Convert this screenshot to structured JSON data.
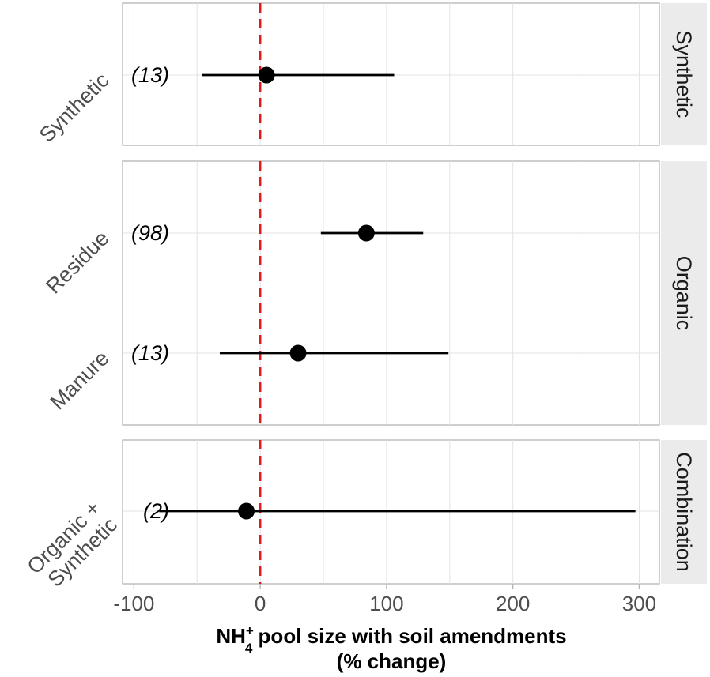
{
  "chart_data": {
    "type": "forest",
    "x_axis": {
      "title_line1_prefix": "NH",
      "title_line1_sub": "4",
      "title_line1_sup": "+",
      "title_line1_suffix": " pool size with soil amendments",
      "title_line2": "(% change)",
      "ticks": [
        -100,
        0,
        100,
        200,
        300
      ],
      "tick_labels": [
        "-100",
        "0",
        "100",
        "200",
        "300"
      ],
      "range": [
        -109,
        316
      ]
    },
    "reference_line": {
      "x": 0,
      "color": "#e31a1c",
      "style": "dashed"
    },
    "grid": true,
    "facets": [
      {
        "strip": "Synthetic",
        "rows": [
          {
            "label": "Synthetic",
            "n_label": "(13)",
            "estimate": 5,
            "lower": -46,
            "upper": 106
          }
        ]
      },
      {
        "strip": "Organic",
        "rows": [
          {
            "label": "Residue",
            "n_label": "(98)",
            "estimate": 84,
            "lower": 48,
            "upper": 129
          },
          {
            "label": "Manure",
            "n_label": "(13)",
            "estimate": 30,
            "lower": -32,
            "upper": 149
          }
        ]
      },
      {
        "strip": "Combination",
        "rows": [
          {
            "label": "Organic +\nSynthetic",
            "n_label": "(2)",
            "estimate": -11,
            "lower": -80,
            "upper": 297
          }
        ]
      }
    ]
  }
}
